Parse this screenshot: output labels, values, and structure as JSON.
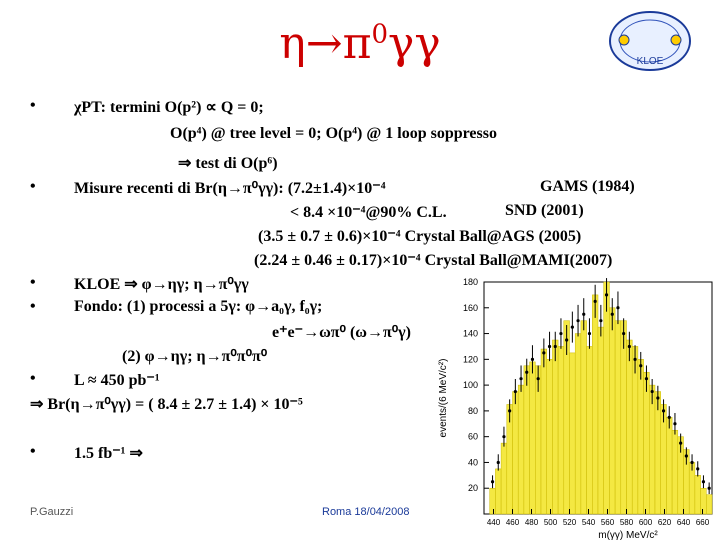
{
  "slide": {
    "title": "η→π⁰γγ",
    "logo_text": "KLOE",
    "bullets": [
      "•",
      "•",
      "•",
      "•",
      "•",
      "•"
    ],
    "lines": [
      "χPT: termini O(p²) ∝ Q = 0;",
      "O(p⁴) @ tree level = 0; O(p⁴) @ 1 loop soppresso",
      "⇒ test di O(p⁶)",
      "Misure recenti di Br(η→π⁰γγ): (7.2±1.4)×10⁻⁴",
      "GAMS (1984)",
      "< 8.4 ×10⁻⁴@90% C.L.",
      "SND (2001)",
      "(3.5 ± 0.7 ± 0.6)×10⁻⁴ Crystal Ball@AGS (2005)",
      "(2.24 ± 0.46 ± 0.17)×10⁻⁴ Crystal Ball@MAMI(2007)",
      "KLOE ⇒ φ→ηγ; η→π⁰γγ",
      "Fondo: (1) processi a 5γ: φ→a₀γ, f₀γ;",
      "e⁺e⁻→ωπ⁰ (ω→π⁰γ)",
      "(2) φ→ηγ; η→π⁰π⁰π⁰",
      "L ≈ 450 pb⁻¹",
      "⇒ Br(η→π⁰γγ) = ( 8.4 ± 2.7 ± 1.4) × 10⁻⁵",
      "1.5 fb⁻¹ ⇒"
    ],
    "footer_left": "P.Gauzzi",
    "footer_center": "Roma 18/04/2008"
  },
  "chart_data": {
    "type": "bar",
    "ylabel": "events/(6 MeV/c²)",
    "xlabel": "m(γγ) MeV/c²",
    "ylim": [
      0,
      180
    ],
    "xlim": [
      430,
      670
    ],
    "yticks": [
      20,
      40,
      60,
      80,
      100,
      120,
      140,
      160,
      180
    ],
    "xticks": [
      440,
      460,
      480,
      500,
      520,
      540,
      560,
      580,
      600,
      620,
      640,
      660
    ],
    "bins_x": [
      436,
      442,
      448,
      454,
      460,
      466,
      472,
      478,
      484,
      490,
      496,
      502,
      508,
      514,
      520,
      526,
      532,
      538,
      544,
      550,
      556,
      562,
      568,
      574,
      580,
      586,
      592,
      598,
      604,
      610,
      616,
      622,
      628,
      634,
      640,
      646,
      652,
      658,
      664
    ],
    "bins_y": [
      20,
      35,
      55,
      85,
      95,
      100,
      115,
      118,
      115,
      128,
      120,
      135,
      130,
      150,
      125,
      140,
      150,
      130,
      170,
      145,
      180,
      160,
      150,
      150,
      135,
      130,
      120,
      110,
      100,
      95,
      85,
      75,
      65,
      60,
      50,
      40,
      30,
      20,
      15
    ],
    "data_y": [
      25,
      40,
      60,
      80,
      95,
      105,
      110,
      120,
      105,
      125,
      130,
      130,
      140,
      135,
      145,
      150,
      155,
      140,
      165,
      150,
      170,
      155,
      160,
      140,
      130,
      120,
      115,
      105,
      95,
      90,
      80,
      75,
      70,
      55,
      45,
      40,
      35,
      25,
      20
    ]
  }
}
